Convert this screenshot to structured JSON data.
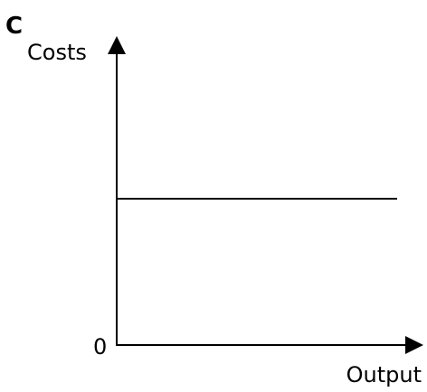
{
  "panel_label": "C",
  "chart_data": {
    "type": "line",
    "title": "",
    "xlabel": "Output",
    "ylabel": "Costs",
    "origin_label": "0",
    "xlim": [
      0,
      100
    ],
    "ylim": [
      0,
      100
    ],
    "grid": false,
    "legend": "none",
    "series": [
      {
        "x": [
          0,
          100
        ],
        "y": [
          50,
          50
        ]
      }
    ],
    "colors": {
      "axes": "#000000",
      "line": "#000000"
    }
  }
}
